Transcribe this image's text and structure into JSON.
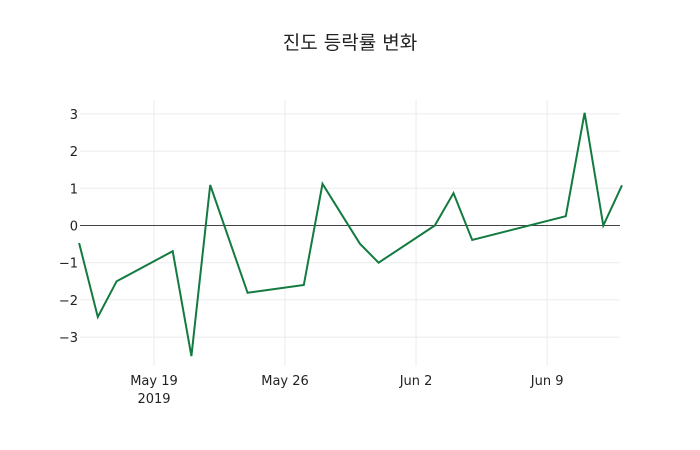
{
  "chart_data": {
    "type": "line",
    "title": "진도 등락률 변화",
    "xlabel": "",
    "ylabel": "",
    "x": [
      "2019-05-15",
      "2019-05-16",
      "2019-05-17",
      "2019-05-20",
      "2019-05-21",
      "2019-05-22",
      "2019-05-24",
      "2019-05-27",
      "2019-05-28",
      "2019-05-30",
      "2019-05-31",
      "2019-06-03",
      "2019-06-04",
      "2019-06-05",
      "2019-06-10",
      "2019-06-11",
      "2019-06-12",
      "2019-06-13"
    ],
    "series": [
      {
        "name": "등락률",
        "color": "#137a40",
        "values": [
          -0.47,
          -2.46,
          -1.5,
          -0.69,
          -3.51,
          1.09,
          -1.81,
          -1.6,
          1.12,
          -0.49,
          -1.0,
          0.0,
          0.87,
          -0.39,
          0.25,
          3.03,
          0.0,
          1.08
        ]
      }
    ],
    "xticks": [
      {
        "date": "2019-05-19",
        "label": "May 19",
        "sublabel": "2019"
      },
      {
        "date": "2019-05-26",
        "label": "May 26",
        "sublabel": ""
      },
      {
        "date": "2019-06-02",
        "label": "Jun 2",
        "sublabel": ""
      },
      {
        "date": "2019-06-09",
        "label": "Jun 9",
        "sublabel": ""
      }
    ],
    "yticks": [
      3,
      2,
      1,
      0,
      -1,
      -2,
      -3
    ],
    "ytick_labels": [
      "3",
      "2",
      "1",
      "0",
      "−1",
      "−2",
      "−3"
    ],
    "ylim": [
      -3.7,
      3.35
    ],
    "grid": true,
    "zero_line": true,
    "legend": "none"
  }
}
